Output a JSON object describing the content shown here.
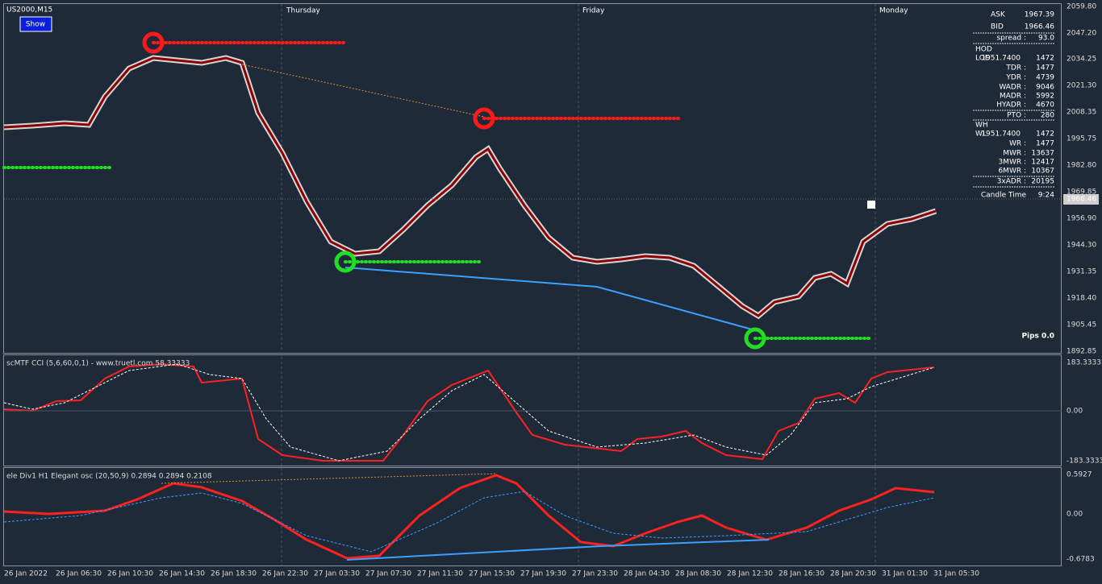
{
  "header": {
    "symbol": "US2000,M15",
    "button": "Show"
  },
  "day_labels": [
    "Thursday",
    "Friday",
    "Monday"
  ],
  "price_axis": [
    "2059.80",
    "2047.20",
    "2034.25",
    "2021.30",
    "2008.35",
    "1995.75",
    "1982.80",
    "1969.85",
    "1956.90",
    "1944.30",
    "1931.35",
    "1918.40",
    "1905.45",
    "1892.85"
  ],
  "current_price": "1966.46",
  "pips": "Pips 0.0",
  "info_panel": [
    {
      "label": "ASK",
      "value": "1967.39"
    },
    {
      "label": "BID",
      "value": "1966.46"
    },
    {
      "label": "spread :",
      "value": "93.0"
    },
    {
      "label": "HOD"
    },
    {
      "label": "LOD",
      "value": "1951.7400",
      "extra": "1472"
    },
    {
      "label": "TDR :",
      "value": "1477"
    },
    {
      "label": "YDR :",
      "value": "4739"
    },
    {
      "label": "WADR :",
      "value": "9046"
    },
    {
      "label": "MADR :",
      "value": "5992"
    },
    {
      "label": "HYADR :",
      "value": "4670"
    },
    {
      "label": "PTO :",
      "value": "280"
    },
    {
      "label": "WH"
    },
    {
      "label": "WL",
      "value": "1951.7400",
      "extra": "1472"
    },
    {
      "label": "WR :",
      "value": "1477"
    },
    {
      "label": "MWR :",
      "value": "13637"
    },
    {
      "label": "3MWR :",
      "value": "12417"
    },
    {
      "label": "6MWR :",
      "value": "10367"
    },
    {
      "label": "3xADR :",
      "value": "20195"
    },
    {
      "label": "Candle Time",
      "value": "9:24"
    }
  ],
  "cci_pane": {
    "title": "scMTF CCI (5,6,60,0,1) - www.truetl.com 58.33333",
    "ticks": [
      "183.33333",
      "0.00",
      "-183.3333"
    ]
  },
  "osc_pane": {
    "title": "ele Div1 H1 Elegant osc (20,50,9) 0.2894 0.2894 0.2108",
    "ticks": [
      "0.5927",
      "0.00",
      "-0.6783"
    ]
  },
  "time_axis": [
    "26 Jan 2022",
    "26 Jan 06:30",
    "26 Jan 10:30",
    "26 Jan 14:30",
    "26 Jan 18:30",
    "26 Jan 22:30",
    "27 Jan 03:30",
    "27 Jan 07:30",
    "27 Jan 11:30",
    "27 Jan 15:30",
    "27 Jan 19:30",
    "27 Jan 23:30",
    "28 Jan 04:30",
    "28 Jan 08:30",
    "28 Jan 12:30",
    "28 Jan 16:30",
    "28 Jan 20:30",
    "31 Jan 01:30",
    "31 Jan 05:30"
  ]
}
